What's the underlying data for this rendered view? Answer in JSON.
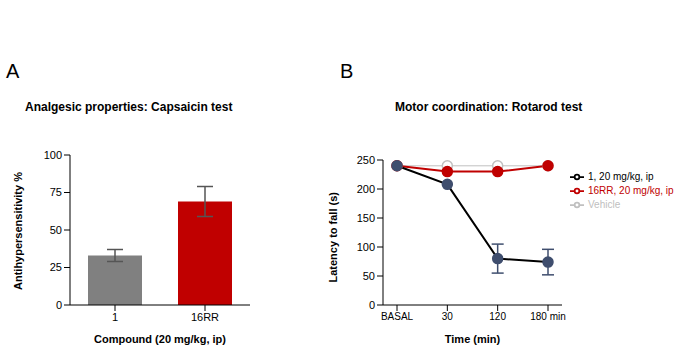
{
  "chart_data": [
    {
      "type": "bar",
      "annotations": [
        "A"
      ],
      "title": "Analgesic properties: Capsaicin test",
      "categories": [
        "1",
        "16RR"
      ],
      "values": [
        33,
        69
      ],
      "errors": [
        4,
        10
      ],
      "colors": [
        "#808080",
        "#c00000"
      ],
      "ylim": [
        0,
        100
      ],
      "yticks": [
        0,
        25,
        50,
        75,
        100
      ],
      "y_label": "Antihypersensitivity %",
      "x_label": "Compound (20 mg/kg, ip)",
      "grid": false
    },
    {
      "type": "line",
      "annotations": [
        "B"
      ],
      "title": "Motor coordination: Rotarod test",
      "categories": [
        "BASAL",
        "30",
        "120",
        "180 min"
      ],
      "series": [
        {
          "name": "Vehicle",
          "color": "#c0c0c0",
          "marker": "open_circle",
          "values": [
            240,
            240,
            240,
            240
          ]
        },
        {
          "name": "16RR, 20 mg/kg, ip",
          "color": "#c00000",
          "marker": "circle",
          "values": [
            240,
            230,
            230,
            240
          ]
        },
        {
          "name": "1, 20 mg/kg, ip",
          "color": "#3f4e6e",
          "marker": "circle",
          "values": [
            240,
            208,
            80,
            74
          ],
          "errors": [
            0,
            0,
            25,
            22
          ]
        }
      ],
      "ylim": [
        0,
        250
      ],
      "yticks": [
        0,
        50,
        100,
        150,
        200,
        250
      ],
      "y_label": "Latency to fall (s)",
      "x_label": "Time (min)",
      "legend": "right",
      "grid": false
    }
  ]
}
